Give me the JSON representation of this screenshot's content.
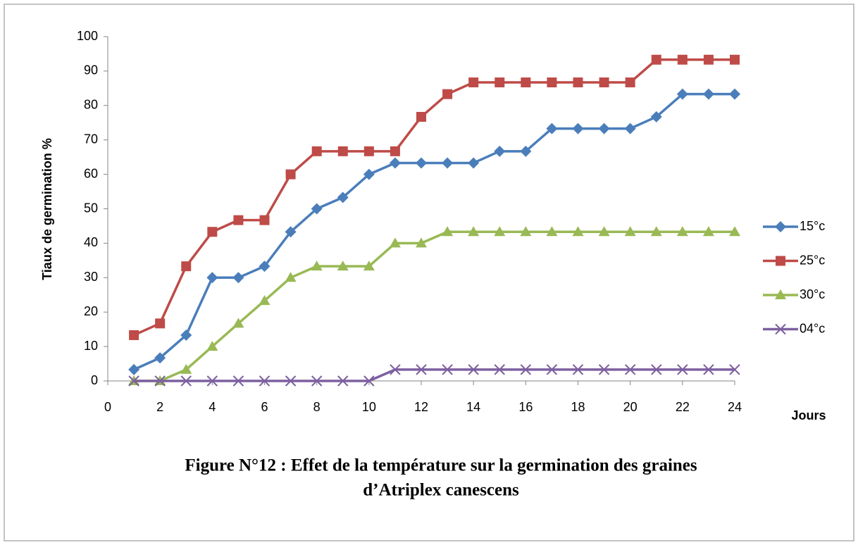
{
  "chart_data": {
    "type": "line",
    "title": [
      "Figure N°12 : Effet de la température sur la germination des graines",
      "d’Atriplex canescens"
    ],
    "y_label": "Tiaux de germination %",
    "x_label": "Jours",
    "x": [
      1,
      2,
      3,
      4,
      5,
      6,
      7,
      8,
      9,
      10,
      11,
      12,
      13,
      14,
      15,
      16,
      17,
      18,
      19,
      20,
      21,
      22,
      23,
      24
    ],
    "series": [
      {
        "name": "15°c",
        "color": "#4a7ebb",
        "marker": "diamond",
        "values": [
          3.3,
          6.7,
          13.3,
          30,
          30,
          33.3,
          43.3,
          50,
          53.3,
          60,
          63.3,
          63.3,
          63.3,
          63.3,
          66.7,
          66.7,
          73.3,
          73.3,
          73.3,
          73.3,
          76.7,
          83.3,
          83.3,
          83.3
        ]
      },
      {
        "name": "25°c",
        "color": "#be4b48",
        "marker": "square",
        "values": [
          13.3,
          16.7,
          33.3,
          43.3,
          46.7,
          46.7,
          60,
          66.7,
          66.7,
          66.7,
          66.7,
          76.7,
          83.3,
          86.7,
          86.7,
          86.7,
          86.7,
          86.7,
          86.7,
          86.7,
          93.3,
          93.3,
          93.3,
          93.3
        ]
      },
      {
        "name": "30°c",
        "color": "#98b954",
        "marker": "triangle",
        "values": [
          0,
          0,
          3.3,
          10,
          16.7,
          23.3,
          30,
          33.3,
          33.3,
          33.3,
          40,
          40,
          43.3,
          43.3,
          43.3,
          43.3,
          43.3,
          43.3,
          43.3,
          43.3,
          43.3,
          43.3,
          43.3,
          43.3
        ]
      },
      {
        "name": "04°c",
        "color": "#7d60a0",
        "marker": "cross",
        "values": [
          0,
          0,
          0,
          0,
          0,
          0,
          0,
          0,
          0,
          0,
          3.3,
          3.3,
          3.3,
          3.3,
          3.3,
          3.3,
          3.3,
          3.3,
          3.3,
          3.3,
          3.3,
          3.3,
          3.3,
          3.3
        ]
      }
    ],
    "xlim": [
      0,
      24
    ],
    "xticks": [
      0,
      2,
      4,
      6,
      8,
      10,
      12,
      14,
      16,
      18,
      20,
      22,
      24
    ],
    "ylim": [
      0,
      100
    ],
    "yticks": [
      0,
      10,
      20,
      30,
      40,
      50,
      60,
      70,
      80,
      90,
      100
    ],
    "grid": false,
    "legend": "right"
  }
}
